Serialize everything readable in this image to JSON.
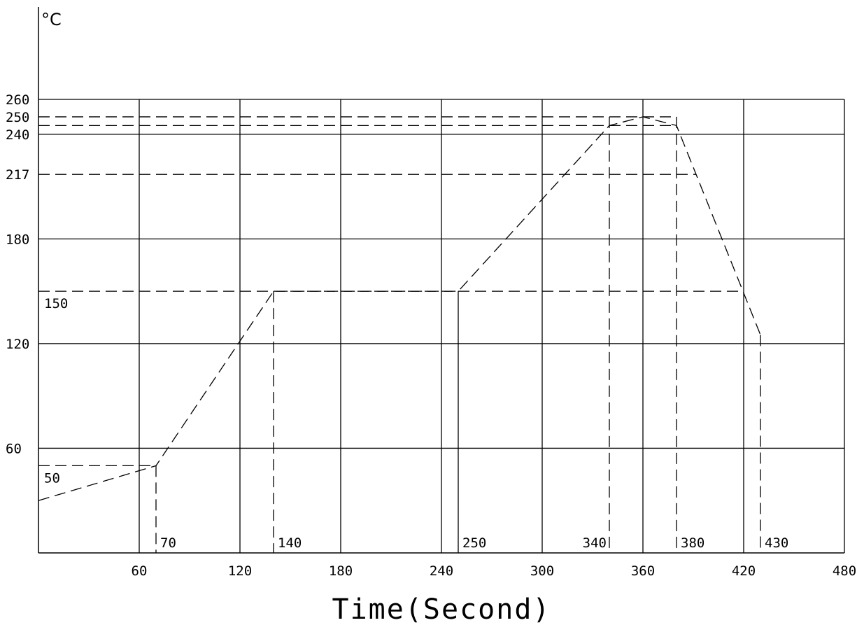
{
  "chart_data": {
    "type": "line",
    "title": "",
    "xlabel": "Time(Second)",
    "ylabel": "°C",
    "xlim": [
      0,
      480
    ],
    "ylim": [
      0,
      260
    ],
    "grid": true,
    "x_ticks": [
      "60",
      "120",
      "180",
      "240",
      "300",
      "360",
      "420",
      "480"
    ],
    "y_ticks": [
      "60",
      "120",
      "180",
      "217",
      "240",
      "250",
      "260"
    ],
    "series": [
      {
        "style": "dashed",
        "x": [
          0,
          70,
          140,
          250,
          340,
          360,
          380,
          430
        ],
        "y": [
          30,
          50,
          150,
          150,
          245,
          250,
          245,
          125
        ]
      }
    ],
    "annotations": [
      {
        "text": "50",
        "x": 0,
        "y": 50
      },
      {
        "text": "150",
        "x": 0,
        "y": 150
      },
      {
        "text": "70",
        "x": 70,
        "y": 0
      },
      {
        "text": "140",
        "x": 140,
        "y": 0
      },
      {
        "text": "250",
        "x": 250,
        "y": 0
      },
      {
        "text": "340",
        "x": 340,
        "y": 0
      },
      {
        "text": "380",
        "x": 380,
        "y": 0
      },
      {
        "text": "430",
        "x": 430,
        "y": 0
      }
    ],
    "reference_lines": {
      "horizontal_dashed": [
        50,
        150,
        217,
        245,
        250
      ],
      "vertical_dashed": [
        70,
        140,
        340,
        380,
        430
      ],
      "vertical_solid": [
        250
      ]
    }
  }
}
